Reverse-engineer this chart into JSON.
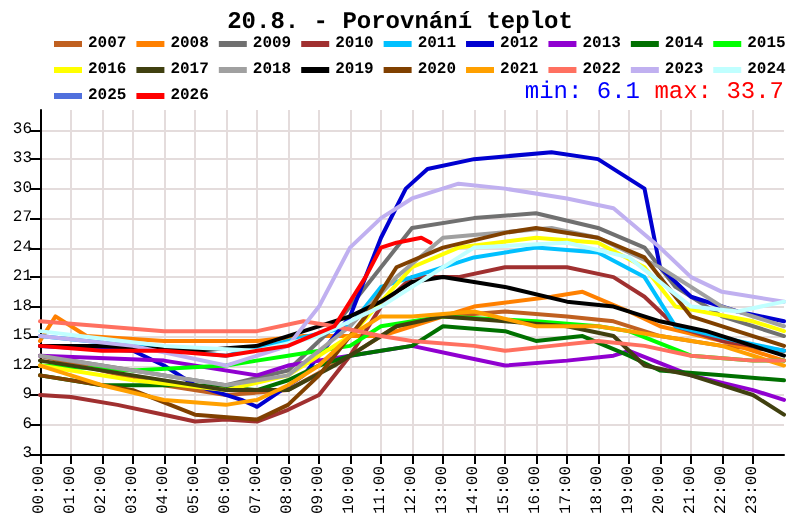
{
  "chart_data": {
    "type": "line",
    "title": "20.8. - Porovnání teplot",
    "annotations": [
      "min: 6.1",
      "max: 33.7"
    ],
    "xlim": [
      0,
      24
    ],
    "xticks": [
      {
        "value": 0,
        "label": "00:00"
      },
      {
        "value": 1,
        "label": "01:00"
      },
      {
        "value": 2,
        "label": "02:00"
      },
      {
        "value": 3,
        "label": "03:00"
      },
      {
        "value": 4,
        "label": "04:00"
      },
      {
        "value": 5,
        "label": "05:00"
      },
      {
        "value": 6,
        "label": "06:00"
      },
      {
        "value": 7,
        "label": "07:00"
      },
      {
        "value": 8,
        "label": "08:00"
      },
      {
        "value": 9,
        "label": "09:00"
      },
      {
        "value": 10,
        "label": "10:00"
      },
      {
        "value": 11,
        "label": "11:00"
      },
      {
        "value": 12,
        "label": "12:00"
      },
      {
        "value": 13,
        "label": "13:00"
      },
      {
        "value": 14,
        "label": "14:00"
      },
      {
        "value": 15,
        "label": "15:00"
      },
      {
        "value": 16,
        "label": "16:00"
      },
      {
        "value": 17,
        "label": "17:00"
      },
      {
        "value": 18,
        "label": "18:00"
      },
      {
        "value": 19,
        "label": "19:00"
      },
      {
        "value": 20,
        "label": "20:00"
      },
      {
        "value": 21,
        "label": "21:00"
      },
      {
        "value": 22,
        "label": "22:00"
      },
      {
        "value": 23,
        "label": "23:00"
      }
    ],
    "ylim": [
      3,
      38
    ],
    "yticks": [
      3,
      6,
      9,
      12,
      15,
      18,
      21,
      24,
      27,
      30,
      33,
      36
    ],
    "grid": true,
    "legend": "top",
    "marker": "none",
    "line_style": "solid",
    "series": [
      {
        "name": "2007",
        "color": "#c06020",
        "x": [
          0,
          2,
          4,
          6,
          8,
          10,
          11.5,
          13,
          15,
          17,
          18.5,
          20,
          22,
          24
        ],
        "values": [
          13,
          11.5,
          10,
          9,
          9.5,
          13,
          16,
          17,
          17.5,
          17,
          16.5,
          15,
          14,
          13.5
        ]
      },
      {
        "name": "2008",
        "color": "#ff8000",
        "x": [
          0,
          0.5,
          1.5,
          4,
          7,
          8.5,
          10,
          11,
          12,
          14,
          16.5,
          17.5,
          19,
          20,
          22,
          24
        ],
        "values": [
          14.5,
          17,
          15,
          14.5,
          14.5,
          15,
          15,
          15,
          16,
          18,
          19,
          19.5,
          17.5,
          16,
          14.5,
          12.5
        ]
      },
      {
        "name": "2009",
        "color": "#707070",
        "x": [
          0,
          2,
          4,
          6,
          8,
          9.5,
          11,
          12,
          14,
          16,
          18,
          19.5,
          20.5,
          22,
          24
        ],
        "values": [
          13,
          12,
          11,
          10,
          11.5,
          16,
          22,
          26,
          27,
          27.5,
          26,
          24,
          20,
          17,
          15
        ]
      },
      {
        "name": "2010",
        "color": "#a03030",
        "x": [
          0,
          1,
          2.5,
          4,
          5,
          6,
          7,
          8,
          9,
          10,
          11,
          12,
          13.5,
          15,
          17,
          18.5,
          19.5,
          20.5,
          22,
          24
        ],
        "values": [
          9,
          8.8,
          8,
          7,
          6.3,
          6.5,
          6.3,
          7.5,
          9,
          13,
          18,
          21,
          21,
          22,
          22,
          21,
          19,
          16,
          14.5,
          13.5
        ]
      },
      {
        "name": "2011",
        "color": "#00c0ff",
        "x": [
          0,
          3,
          6,
          8,
          10,
          11,
          12,
          14,
          16,
          18,
          19.5,
          20.5,
          22.5,
          24
        ],
        "values": [
          15,
          14,
          13,
          14.5,
          16,
          20,
          21,
          23,
          24,
          23.5,
          21,
          16,
          14.5,
          13.5
        ]
      },
      {
        "name": "2012",
        "color": "#0000d0",
        "x": [
          0,
          3,
          4,
          5,
          6.5,
          7,
          8.5,
          10,
          11,
          11.8,
          12.5,
          14,
          16.5,
          18,
          19.5,
          20,
          21,
          22.5,
          24
        ],
        "values": [
          14,
          13.5,
          12,
          10,
          8.5,
          7.8,
          11,
          17,
          25,
          30,
          32,
          33,
          33.7,
          33,
          30,
          22,
          19,
          17.5,
          16.5
        ]
      },
      {
        "name": "2013",
        "color": "#9000d0",
        "x": [
          0,
          4,
          7,
          8,
          10,
          12,
          13.5,
          15,
          17,
          18.5,
          19,
          21,
          23,
          24
        ],
        "values": [
          13,
          12.5,
          11,
          12,
          13,
          14,
          13,
          12,
          12.5,
          13,
          13.5,
          11,
          9.5,
          8.5
        ]
      },
      {
        "name": "2014",
        "color": "#007000",
        "x": [
          0,
          2,
          5,
          7,
          8,
          9,
          10,
          11,
          12,
          13,
          15,
          16,
          17.5,
          19,
          20,
          22,
          24
        ],
        "values": [
          11,
          10,
          10,
          9.5,
          10.5,
          12,
          13,
          13.5,
          14,
          16,
          15.5,
          14.5,
          15,
          13,
          11.5,
          11,
          10.5
        ]
      },
      {
        "name": "2015",
        "color": "#00ff00",
        "x": [
          0,
          3,
          6,
          7,
          8,
          10,
          11,
          13,
          16,
          18,
          19,
          21,
          23,
          24
        ],
        "values": [
          12,
          11.5,
          12,
          12.5,
          13,
          14,
          16,
          17,
          16.5,
          16,
          15.5,
          13,
          12.5,
          12.5
        ]
      },
      {
        "name": "2016",
        "color": "#ffff00",
        "x": [
          0,
          3,
          6,
          8,
          10,
          12,
          13.5,
          16,
          18,
          19.5,
          20.5,
          23,
          24
        ],
        "values": [
          12,
          10.5,
          9.5,
          11,
          15,
          22,
          24,
          25,
          24.5,
          22,
          18,
          16.5,
          15.5
        ]
      },
      {
        "name": "2017",
        "color": "#404010",
        "x": [
          0,
          3,
          6,
          8,
          9.5,
          10.5,
          11.5,
          13,
          15,
          17,
          18.5,
          19.5,
          21,
          23,
          24
        ],
        "values": [
          12.5,
          11,
          9.5,
          9.5,
          12,
          14,
          16,
          17,
          16.5,
          16,
          15,
          12,
          11,
          9,
          7
        ]
      },
      {
        "name": "2018",
        "color": "#a0a0a0",
        "x": [
          0,
          3,
          6,
          8,
          10,
          11.5,
          13,
          16.5,
          18,
          20,
          22,
          24
        ],
        "values": [
          13,
          11.5,
          10,
          11,
          16,
          21,
          25,
          26,
          25,
          22,
          18,
          16
        ]
      },
      {
        "name": "2019",
        "color": "#000000",
        "x": [
          0,
          2,
          5,
          7,
          8,
          10,
          11,
          12,
          13,
          15,
          17,
          18.5,
          20,
          21.5,
          23,
          24
        ],
        "values": [
          14,
          14,
          13.5,
          14,
          15,
          17,
          18.5,
          20.5,
          21,
          20,
          18.5,
          18,
          16.5,
          15.5,
          14,
          13
        ]
      },
      {
        "name": "2020",
        "color": "#804000",
        "x": [
          0,
          3,
          5,
          7,
          8,
          9,
          10.5,
          11.5,
          13,
          15,
          16,
          18,
          19.5,
          21,
          23,
          24
        ],
        "values": [
          11,
          9.5,
          7,
          6.5,
          8,
          11,
          17,
          22,
          24,
          25.5,
          26,
          25,
          23,
          17,
          15,
          14
        ]
      },
      {
        "name": "2021",
        "color": "#ffa000",
        "x": [
          0,
          2,
          4,
          6,
          7,
          8,
          9,
          10,
          11,
          12,
          14,
          16,
          18,
          20,
          22,
          24
        ],
        "values": [
          12,
          10,
          8.5,
          8,
          8.5,
          10,
          12,
          15,
          17,
          17,
          17.5,
          16,
          16,
          15,
          14,
          12
        ]
      },
      {
        "name": "2022",
        "color": "#ff7060",
        "x": [
          0,
          2,
          4,
          7,
          8.5,
          9.5,
          11,
          12,
          14,
          15,
          16.5,
          18,
          19.5,
          21,
          23,
          24
        ],
        "values": [
          16.5,
          16,
          15.5,
          15.5,
          16.5,
          16,
          15,
          14.5,
          14,
          13.5,
          14,
          14.5,
          14,
          13,
          12.5,
          12.5
        ]
      },
      {
        "name": "2023",
        "color": "#c0b0f0",
        "x": [
          0,
          3,
          6,
          8,
          9,
          10,
          11,
          12,
          13.5,
          15,
          17,
          18.5,
          20,
          21,
          22,
          24
        ],
        "values": [
          15,
          14,
          12,
          14,
          18,
          24,
          27,
          29,
          30.5,
          30,
          29,
          28,
          24,
          21,
          19.5,
          18.5
        ]
      },
      {
        "name": "2024",
        "color": "#c0ffff",
        "x": [
          0,
          4,
          7,
          9,
          11,
          12.5,
          14,
          17,
          19,
          21,
          22.5,
          24
        ],
        "values": [
          15.5,
          14,
          13.5,
          15,
          18,
          21,
          24,
          24.5,
          23,
          18,
          17.5,
          18.5
        ]
      },
      {
        "name": "2025"
      },
      {
        "name": "2026",
        "color": "#ff0000",
        "x": [
          0,
          2,
          4,
          6,
          7,
          8,
          9.5,
          10.5,
          11,
          11.5,
          12.3,
          12.6
        ],
        "values": [
          14,
          13.5,
          13.5,
          13,
          13.5,
          14,
          16,
          21,
          24,
          24.5,
          25,
          24.5
        ]
      }
    ]
  }
}
